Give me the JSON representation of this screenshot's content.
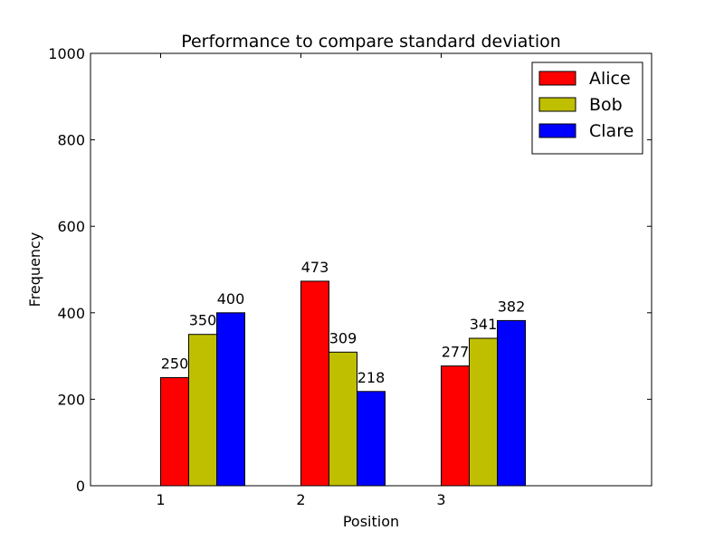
{
  "chart_data": {
    "type": "bar",
    "title": "Performance to compare standard deviation",
    "xlabel": "Position",
    "ylabel": "Frequency",
    "categories": [
      "1",
      "2",
      "3"
    ],
    "xlim": [
      0.5,
      4.5
    ],
    "ylim": [
      0,
      1000
    ],
    "yticks": [
      0,
      200,
      400,
      600,
      800,
      1000
    ],
    "grid": false,
    "legend_position": "top-right",
    "series": [
      {
        "name": "Alice",
        "color": "#ff0000",
        "values": [
          250,
          473,
          277
        ],
        "labels": [
          "250",
          "473",
          "277"
        ]
      },
      {
        "name": "Bob",
        "color": "#bfbf00",
        "values": [
          350,
          309,
          341
        ],
        "labels": [
          "350",
          "309",
          "341"
        ]
      },
      {
        "name": "Clare",
        "color": "#0000ff",
        "values": [
          400,
          218,
          382
        ],
        "labels": [
          "400",
          "218",
          "382"
        ]
      }
    ]
  }
}
